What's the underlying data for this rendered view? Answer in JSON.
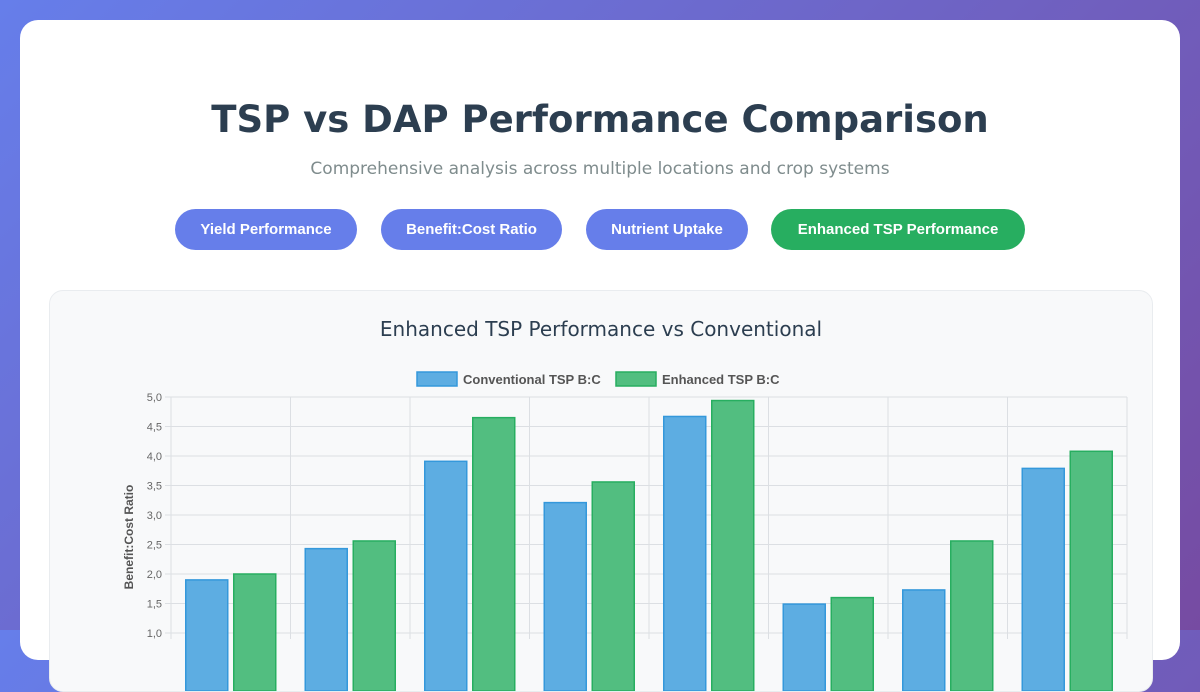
{
  "header": {
    "title": "TSP vs DAP Performance Comparison",
    "subtitle": "Comprehensive analysis across multiple locations and crop systems"
  },
  "tabs": [
    {
      "label": "Yield Performance",
      "active": false
    },
    {
      "label": "Benefit:Cost Ratio",
      "active": false
    },
    {
      "label": "Nutrient Uptake",
      "active": false
    },
    {
      "label": "Enhanced TSP Performance",
      "active": true
    }
  ],
  "colors": {
    "series1_fill": "#5dade2",
    "series1_stroke": "#3498db",
    "series2_fill": "#52be80",
    "series2_stroke": "#27ae60",
    "active_tab": "#27ae60",
    "tab": "#667eea"
  },
  "chart_data": {
    "type": "bar",
    "title": "Enhanced TSP Performance vs Conventional",
    "ylabel": "Benefit:Cost Ratio",
    "ylim": [
      1.0,
      5.0
    ],
    "yticks": [
      "1,0",
      "1,5",
      "2,0",
      "2,5",
      "3,0",
      "3,5",
      "4,0",
      "4,5",
      "5,0"
    ],
    "grid": true,
    "legend_position": "top",
    "series": [
      {
        "name": "Conventional TSP B:C",
        "values": [
          1.9,
          2.43,
          3.91,
          3.21,
          4.67,
          1.49,
          1.73,
          3.79
        ]
      },
      {
        "name": "Enhanced TSP B:C",
        "values": [
          2.0,
          2.56,
          4.65,
          3.56,
          4.94,
          1.6,
          2.56,
          4.08
        ]
      }
    ]
  }
}
